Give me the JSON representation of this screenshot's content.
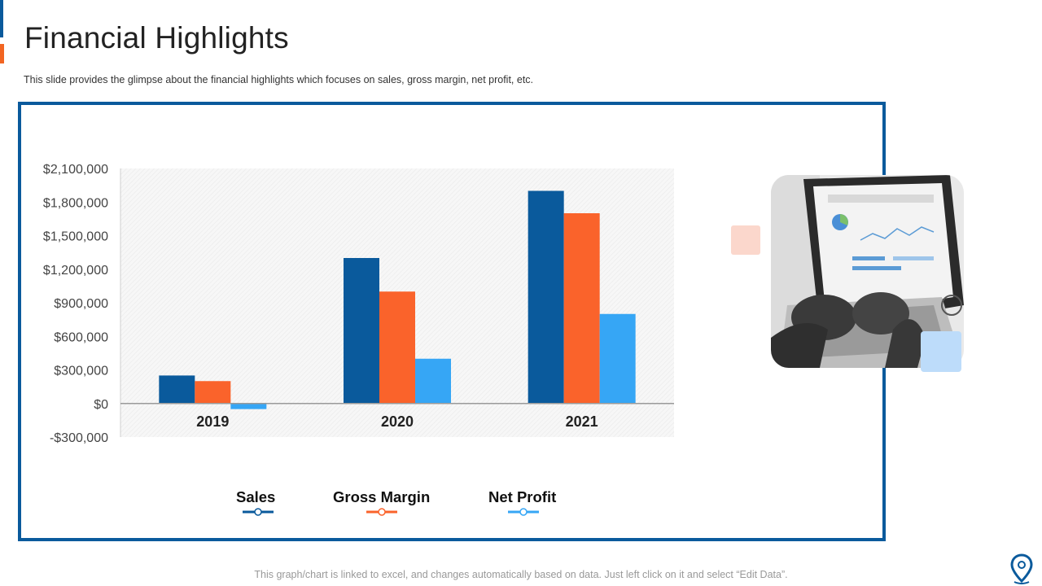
{
  "title": "Financial Highlights",
  "subtitle": "This slide provides  the glimpse about the financial highlights which focuses on sales, gross margin, net profit, etc.",
  "footer": "This graph/chart is linked to excel, and changes automatically based on data. Just left click on it and select “Edit Data”.",
  "colors": {
    "sales": "#0a5a9c",
    "gross_margin": "#fa632b",
    "net_profit": "#36a6f5",
    "frame": "#0a5a9c"
  },
  "chart_data": {
    "type": "bar",
    "title": "",
    "xlabel": "",
    "ylabel": "",
    "categories": [
      "2019",
      "2020",
      "2021"
    ],
    "series": [
      {
        "name": "Sales",
        "values": [
          250000,
          1300000,
          1900000
        ]
      },
      {
        "name": "Gross Margin",
        "values": [
          200000,
          1000000,
          1700000
        ]
      },
      {
        "name": "Net Profit",
        "values": [
          -50000,
          400000,
          800000
        ]
      }
    ],
    "ylim": [
      -300000,
      2100000
    ],
    "yticks": [
      -300000,
      0,
      300000,
      600000,
      900000,
      1200000,
      1500000,
      1800000,
      2100000
    ],
    "ytick_labels": [
      "-$300,000",
      "$0",
      "$300,000",
      "$600,000",
      "$900,000",
      "$1,200,000",
      "$1,500,000",
      "$1,800,000",
      "$2,100,000"
    ],
    "legend_position": "bottom"
  },
  "icons": {
    "photo": "laptop-photo-icon",
    "logo": "location-pin-icon"
  }
}
